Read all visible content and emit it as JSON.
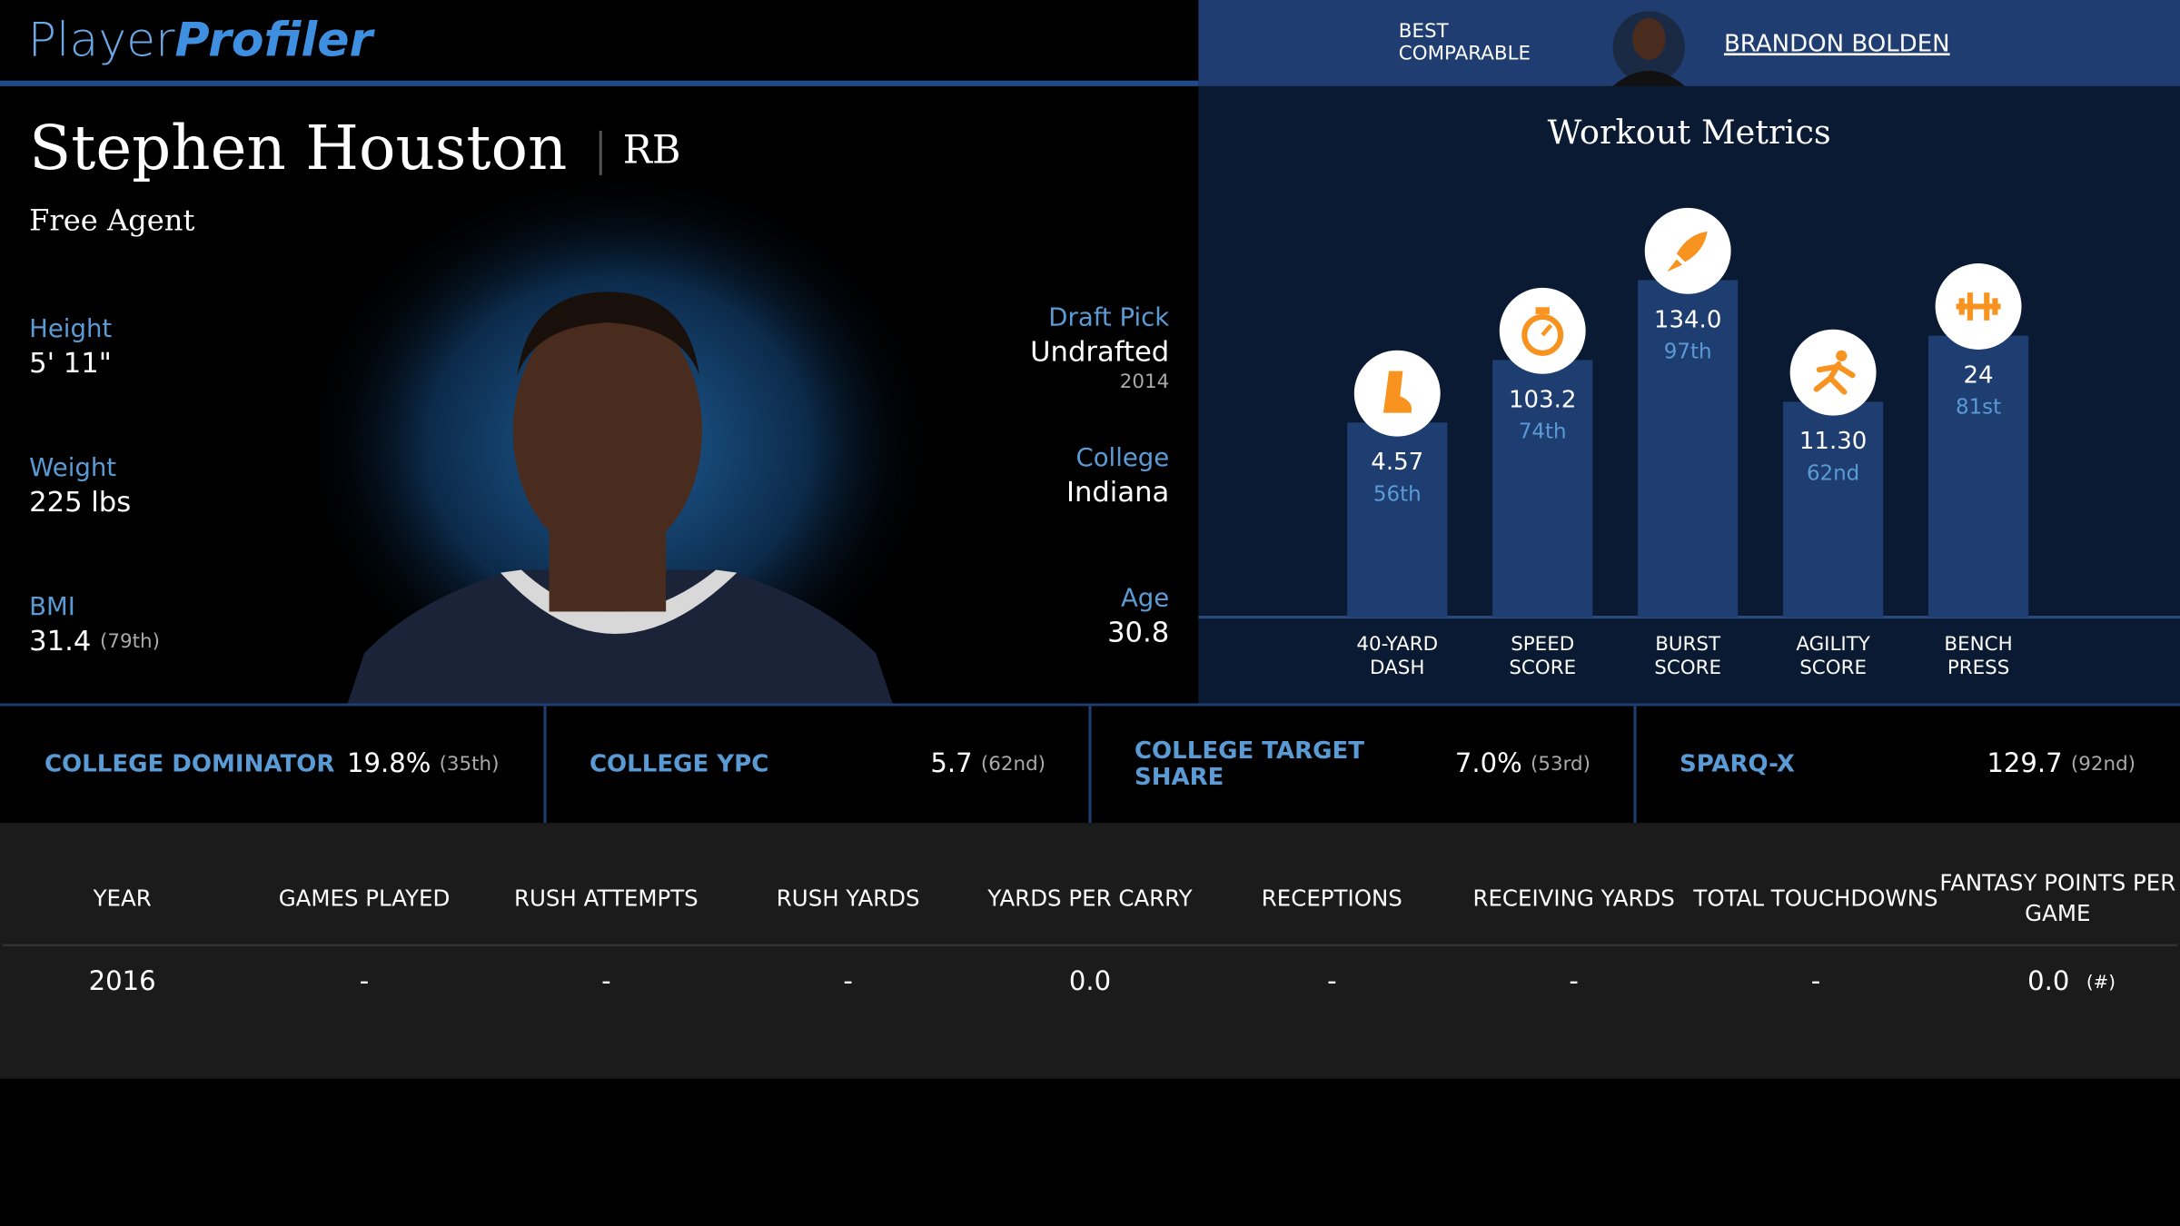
{
  "header": {
    "logo_1": "Player",
    "logo_2": "Profiler",
    "comparable_label": [
      "BEST",
      "COMPARABLE"
    ],
    "comparable_name": "BRANDON BOLDEN"
  },
  "player": {
    "name": "Stephen Houston",
    "position": "RB",
    "status": "Free Agent",
    "bio_left": [
      {
        "label": "Height",
        "value": "5' 11\""
      },
      {
        "label": "Weight",
        "value": "225 lbs"
      },
      {
        "label": "BMI",
        "value": "31.4",
        "note": "(79th)"
      }
    ],
    "bio_right": [
      {
        "label": "Draft Pick",
        "value": "Undrafted",
        "note": "2014"
      },
      {
        "label": "College",
        "value": "Indiana"
      },
      {
        "label": "Age",
        "value": "30.8"
      }
    ]
  },
  "workout": {
    "title": "Workout Metrics",
    "metrics": [
      {
        "name": [
          "40-YARD",
          "DASH"
        ],
        "value": "4.57",
        "percentile": 56,
        "percentile_label": "56th"
      },
      {
        "name": [
          "SPEED",
          "SCORE"
        ],
        "value": "103.2",
        "percentile": 74,
        "percentile_label": "74th"
      },
      {
        "name": [
          "BURST",
          "SCORE"
        ],
        "value": "134.0",
        "percentile": 97,
        "percentile_label": "97th"
      },
      {
        "name": [
          "AGILITY",
          "SCORE"
        ],
        "value": "11.30",
        "percentile": 62,
        "percentile_label": "62nd"
      },
      {
        "name": [
          "BENCH",
          "PRESS"
        ],
        "value": "24",
        "percentile": 81,
        "percentile_label": "81st"
      }
    ]
  },
  "college_stats": [
    {
      "label": [
        "COLLEGE DOMINATOR"
      ],
      "value": "19.8%",
      "rank": "(35th)"
    },
    {
      "label": [
        "COLLEGE YPC"
      ],
      "value": "5.7",
      "rank": "(62nd)"
    },
    {
      "label": [
        "COLLEGE TARGET",
        "SHARE"
      ],
      "value": "7.0%",
      "rank": "(53rd)"
    },
    {
      "label": [
        "SPARQ-X"
      ],
      "value": "129.7",
      "rank": "(92nd)"
    }
  ],
  "table": {
    "columns": [
      [
        "YEAR"
      ],
      [
        "GAMES PLAYED"
      ],
      [
        "RUSH ATTEMPTS"
      ],
      [
        "RUSH YARDS"
      ],
      [
        "YARDS PER CARRY"
      ],
      [
        "RECEPTIONS"
      ],
      [
        "RECEIVING YARDS"
      ],
      [
        "TOTAL TOUCHDOWNS"
      ],
      [
        "FANTASY POINTS PER",
        "GAME"
      ]
    ],
    "rows": [
      [
        "2016",
        "-",
        "-",
        "-",
        "0.0",
        "-",
        "-",
        "-",
        {
          "value": "0.0",
          "note": "(#)"
        }
      ]
    ]
  }
}
